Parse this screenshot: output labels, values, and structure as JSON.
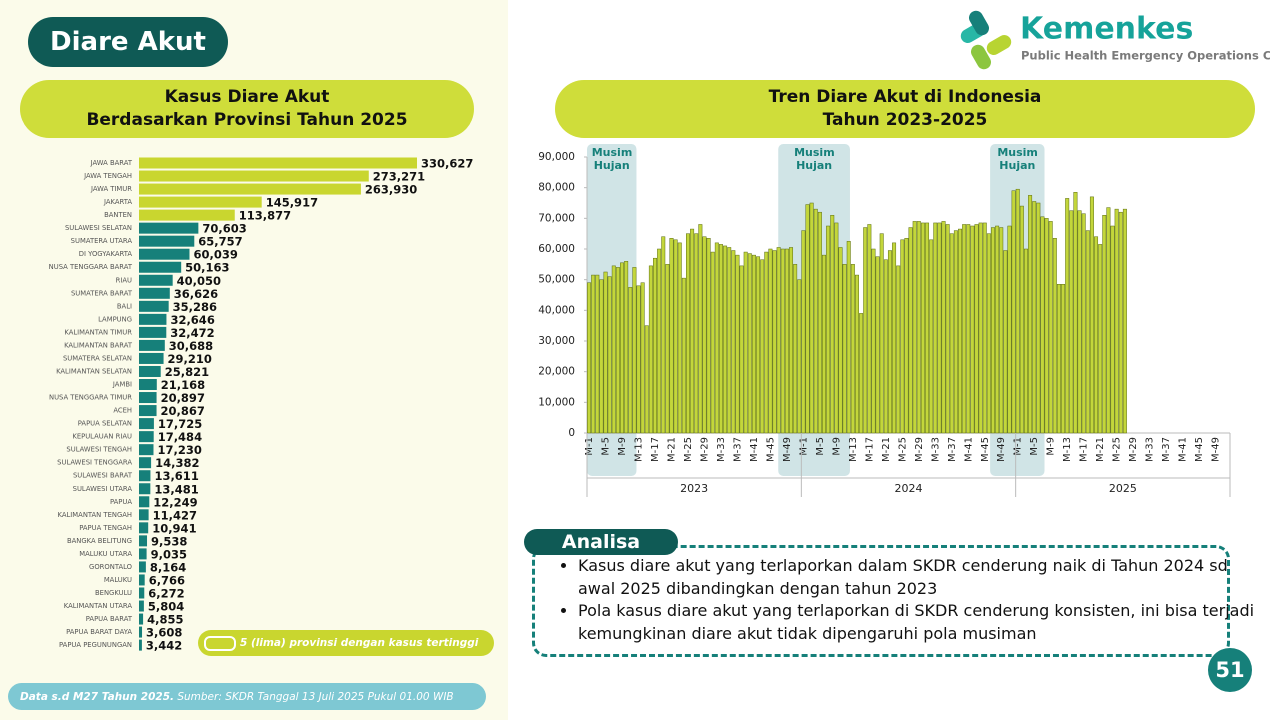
{
  "header": {
    "title": "Diare Akut",
    "logo_name": "Kemenkes",
    "logo_subtitle": "Public Health Emergency Operations Center"
  },
  "chart_data": [
    {
      "type": "hbar",
      "title": "Kasus Diare Akut\nBerdasarkan Provinsi Tahun 2025",
      "categories": [
        "JAWA BARAT",
        "JAWA TENGAH",
        "JAWA TIMUR",
        "JAKARTA",
        "BANTEN",
        "SULAWESI SELATAN",
        "SUMATERA UTARA",
        "DI YOGYAKARTA",
        "NUSA TENGGARA BARAT",
        "RIAU",
        "SUMATERA BARAT",
        "BALI",
        "LAMPUNG",
        "KALIMANTAN TIMUR",
        "KALIMANTAN BARAT",
        "SUMATERA SELATAN",
        "KALIMANTAN SELATAN",
        "JAMBI",
        "NUSA TENGGARA TIMUR",
        "ACEH",
        "PAPUA SELATAN",
        "KEPULAUAN RIAU",
        "SULAWESI TENGAH",
        "SULAWESI TENGGARA",
        "SULAWESI BARAT",
        "SULAWESI UTARA",
        "PAPUA",
        "KALIMANTAN TENGAH",
        "PAPUA TENGAH",
        "BANGKA BELITUNG",
        "MALUKU UTARA",
        "GORONTALO",
        "MALUKU",
        "BENGKULU",
        "KALIMANTAN UTARA",
        "PAPUA BARAT",
        "PAPUA BARAT DAYA",
        "PAPUA PEGUNUNGAN"
      ],
      "values": [
        330627,
        273271,
        263930,
        145917,
        113877,
        70603,
        65757,
        60039,
        50163,
        40050,
        36626,
        35286,
        32646,
        32472,
        30688,
        29210,
        25821,
        21168,
        20897,
        20867,
        17725,
        17484,
        17230,
        14382,
        13611,
        13481,
        12249,
        11427,
        10941,
        9538,
        9035,
        8164,
        6766,
        6272,
        5804,
        4855,
        3608,
        3442
      ],
      "value_labels": [
        "330,627",
        "273,271",
        "263,930",
        "145,917",
        "113,877",
        "70,603",
        "65,757",
        "60,039",
        "50,163",
        "40,050",
        "36,626",
        "35,286",
        "32,646",
        "32,472",
        "30,688",
        "29,210",
        "25,821",
        "21,168",
        "20,897",
        "20,867",
        "17,725",
        "17,484",
        "17,230",
        "14,382",
        "13,611",
        "13,481",
        "12,249",
        "11,427",
        "10,941",
        "9,538",
        "9,035",
        "8,164",
        "6,766",
        "6,272",
        "5,804",
        "4,855",
        "3,608",
        "3,442"
      ],
      "colors": [
        "#c9d62f",
        "#c9d62f",
        "#c9d62f",
        "#c9d62f",
        "#c9d62f",
        "#16807a",
        "#16807a",
        "#16807a",
        "#16807a",
        "#16807a",
        "#16807a",
        "#16807a",
        "#16807a",
        "#16807a",
        "#16807a",
        "#16807a",
        "#16807a",
        "#16807a",
        "#16807a",
        "#16807a",
        "#16807a",
        "#16807a",
        "#16807a",
        "#16807a",
        "#16807a",
        "#16807a",
        "#16807a",
        "#16807a",
        "#16807a",
        "#16807a",
        "#16807a",
        "#16807a",
        "#16807a",
        "#16807a",
        "#16807a",
        "#16807a",
        "#16807a",
        "#16807a"
      ],
      "legend": {
        "label": "5 (lima) provinsi dengan kasus tertinggi",
        "color": "#c9d62f"
      }
    },
    {
      "type": "bar",
      "title": "Tren Diare Akut di Indonesia\nTahun 2023-2025",
      "color": "#c3d63b",
      "categories": [
        "M-1",
        null,
        null,
        null,
        "M-5",
        null,
        null,
        null,
        "M-9",
        null,
        null,
        null,
        "M-13",
        null,
        null,
        null,
        "M-17",
        null,
        null,
        null,
        "M-21",
        null,
        null,
        null,
        "M-25",
        null,
        null,
        null,
        "M-29",
        null,
        null,
        null,
        "M-33",
        null,
        null,
        null,
        "M-37",
        null,
        null,
        null,
        "M-41",
        null,
        null,
        null,
        "M-45",
        null,
        null,
        null,
        "M-49",
        null,
        null,
        null,
        "M-1",
        null,
        null,
        null,
        "M-5",
        null,
        null,
        null,
        "M-9",
        null,
        null,
        null,
        "M-13",
        null,
        null,
        null,
        "M-17",
        null,
        null,
        null,
        "M-21",
        null,
        null,
        null,
        "M-25",
        null,
        null,
        null,
        "M-29",
        null,
        null,
        null,
        "M-33",
        null,
        null,
        null,
        "M-37",
        null,
        null,
        null,
        "M-41",
        null,
        null,
        null,
        "M-45",
        null,
        null,
        null,
        "M-49",
        null,
        null,
        null,
        "M-1",
        null,
        null,
        null,
        "M-5",
        null,
        null,
        null,
        "M-9",
        null,
        null,
        null,
        "M-13",
        null,
        null,
        null,
        "M-17",
        null,
        null,
        null,
        "M-21",
        null,
        null,
        null,
        "M-25",
        null,
        null,
        null,
        "M-29",
        null,
        null,
        null,
        "M-33",
        null,
        null,
        null,
        "M-37",
        null,
        null,
        null,
        "M-41",
        null,
        null,
        null,
        "M-45",
        null,
        null,
        null,
        "M-49",
        null,
        null,
        null
      ],
      "groups": [
        "2023",
        "2024",
        "2025"
      ],
      "values": [
        49000,
        51500,
        51500,
        50000,
        52500,
        51000,
        54500,
        54000,
        55500,
        56000,
        47500,
        54000,
        48000,
        49000,
        35000,
        54500,
        57000,
        60000,
        64000,
        55000,
        63500,
        63000,
        62000,
        50500,
        65000,
        66500,
        65000,
        68000,
        64000,
        63500,
        59000,
        62000,
        61500,
        61000,
        60500,
        59500,
        58000,
        54500,
        59000,
        58500,
        58000,
        57500,
        56500,
        59000,
        60000,
        59500,
        60500,
        60000,
        60000,
        60500,
        55000,
        50000,
        66000,
        74500,
        75000,
        73000,
        72000,
        58000,
        67500,
        71000,
        68500,
        60500,
        55000,
        62500,
        55000,
        51500,
        39000,
        67000,
        68000,
        60000,
        57500,
        65000,
        56500,
        59500,
        62000,
        54500,
        63000,
        63500,
        67000,
        69000,
        69000,
        68500,
        68500,
        63000,
        68500,
        68500,
        69000,
        68000,
        65000,
        66000,
        66500,
        68000,
        68000,
        67500,
        68000,
        68500,
        68500,
        65000,
        67000,
        67500,
        67000,
        59500,
        67500,
        79000,
        79500,
        74000,
        60000,
        77500,
        75500,
        75000,
        70500,
        70000,
        69000,
        63500,
        48500,
        48500,
        76500,
        72500,
        78500,
        72500,
        71500,
        66000,
        77000,
        64000,
        61500,
        71000,
        73500,
        67500,
        73000,
        72000,
        73000,
        null,
        null,
        null,
        null,
        null,
        null,
        null,
        null,
        null,
        null,
        null,
        null,
        null,
        null,
        null,
        null,
        null,
        null,
        null,
        null,
        null,
        null,
        null,
        null,
        null
      ],
      "ylim": [
        0,
        90000
      ],
      "yticks": [
        0,
        {
          "value": 10000,
          "label": "10,000"
        },
        {
          "value": 20000,
          "label": "20,000"
        },
        {
          "value": 30000,
          "label": "30,000"
        },
        {
          "value": 40000,
          "label": "40,000"
        },
        {
          "value": 50000,
          "label": "50,000"
        },
        {
          "value": 60000,
          "label": "60,000"
        },
        {
          "value": 70000,
          "label": "70,000"
        },
        {
          "value": 80000,
          "label": "80,000"
        },
        {
          "value": 90000,
          "label": "90,000"
        }
      ],
      "annotations": [
        "Musim Hujan",
        "Musim Hujan",
        "Musim Hujan"
      ]
    }
  ],
  "analysis": {
    "title": "Analisa",
    "points": [
      "Kasus diare akut yang terlaporkan dalam SKDR cenderung naik di Tahun 2024 sd awal 2025 dibandingkan dengan tahun 2023",
      "Pola kasus diare akut yang terlaporkan di SKDR cenderung konsisten, ini bisa terjadi kemungkinan diare akut tidak dipengaruhi pola musiman"
    ]
  },
  "footer": {
    "note": "Data s.d M27 Tahun 2025.",
    "source": "Sumber: SKDR Tanggal 13 Juli 2025 Pukul 01.00 WIB",
    "page": "51"
  }
}
